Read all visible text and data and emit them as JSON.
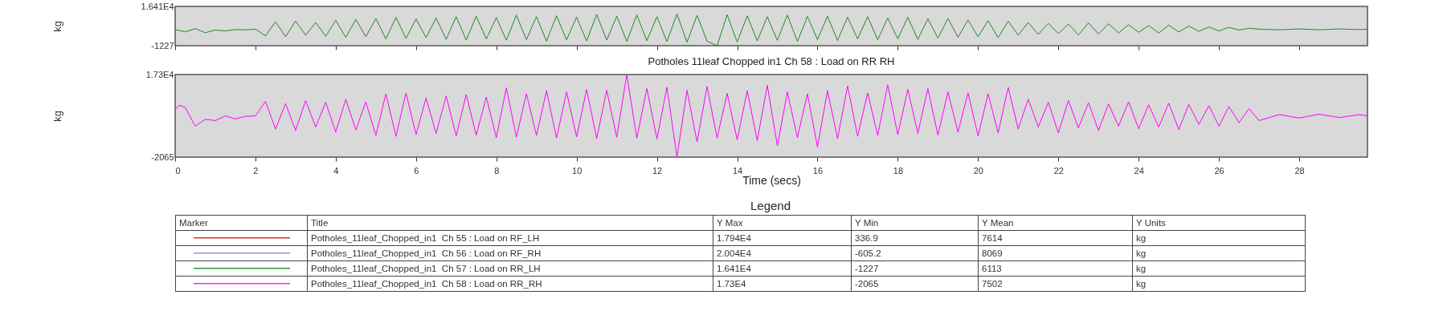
{
  "chart_data": [
    {
      "type": "line",
      "ylabel": "kg",
      "tick_labels": "y",
      "xlim": [
        0,
        29.7
      ],
      "xticks": [
        0,
        2,
        4,
        6,
        8,
        10,
        12,
        14,
        16,
        18,
        20,
        22,
        24,
        26,
        28
      ],
      "ylim": [
        -1227,
        16410
      ],
      "yticks": [
        -1227,
        {
          "value": 16410,
          "label": "1.641E4"
        }
      ],
      "x": [
        0,
        0.25,
        0.5,
        0.75,
        1,
        1.25,
        1.5,
        1.75,
        2,
        2.25,
        2.5,
        2.75,
        3,
        3.25,
        3.5,
        3.75,
        4,
        4.25,
        4.5,
        4.75,
        5,
        5.25,
        5.5,
        5.75,
        6,
        6.25,
        6.5,
        6.75,
        7,
        7.25,
        7.5,
        7.75,
        8,
        8.25,
        8.5,
        8.75,
        9,
        9.25,
        9.5,
        9.75,
        10,
        10.25,
        10.5,
        10.75,
        11,
        11.25,
        11.5,
        11.75,
        12,
        12.25,
        12.5,
        12.75,
        13,
        13.25,
        13.5,
        13.75,
        14,
        14.25,
        14.5,
        14.75,
        15,
        15.25,
        15.5,
        15.75,
        16,
        16.25,
        16.5,
        16.75,
        17,
        17.25,
        17.5,
        17.75,
        18,
        18.25,
        18.5,
        18.75,
        19,
        19.25,
        19.5,
        19.75,
        20,
        20.25,
        20.5,
        20.75,
        21,
        21.25,
        21.5,
        21.75,
        22,
        22.25,
        22.5,
        22.75,
        23,
        23.25,
        23.5,
        23.75,
        24,
        24.25,
        24.5,
        24.75,
        25,
        25.25,
        25.5,
        25.75,
        26,
        26.25,
        26.5,
        26.75,
        27,
        27.5,
        28,
        28.5,
        29,
        29.5,
        29.7
      ],
      "series": [
        {
          "color": "#1f8a1f",
          "values": [
            6000,
            5000,
            6400,
            4600,
            5800,
            5400,
            6000,
            5900,
            6200,
            3200,
            9500,
            2800,
            9800,
            3500,
            9200,
            3000,
            10200,
            2500,
            10500,
            2800,
            11000,
            1800,
            11500,
            2000,
            10800,
            2400,
            11200,
            1600,
            11800,
            1300,
            12000,
            1800,
            11400,
            1200,
            12500,
            1500,
            11800,
            800,
            12200,
            1400,
            11600,
            900,
            12800,
            1300,
            12000,
            700,
            12600,
            1000,
            11800,
            600,
            13000,
            300,
            12400,
            800,
            -1227,
            12700,
            400,
            12200,
            900,
            11800,
            1200,
            12500,
            700,
            11900,
            1500,
            12000,
            1100,
            11600,
            1800,
            11800,
            1400,
            11200,
            1900,
            11500,
            1600,
            10900,
            2200,
            11000,
            2500,
            10300,
            2800,
            10000,
            2400,
            9800,
            3500,
            9200,
            3800,
            8800,
            4200,
            8500,
            3600,
            9000,
            4000,
            8600,
            4500,
            8200,
            4800,
            7800,
            4500,
            8000,
            4900,
            7600,
            5200,
            7200,
            5400,
            7000,
            5800,
            6600,
            6200,
            5900,
            6300,
            5900,
            6300,
            6000,
            6200
          ]
        }
      ]
    },
    {
      "type": "line",
      "title": "Potholes 11leaf Chopped in1  Ch 58 : Load on RR RH",
      "xlabel": "Time (secs)",
      "ylabel": "kg",
      "xlim": [
        0,
        29.7
      ],
      "xticks": [
        0,
        2,
        4,
        6,
        8,
        10,
        12,
        14,
        16,
        18,
        20,
        22,
        24,
        26,
        28
      ],
      "ylim": [
        -2065,
        17300
      ],
      "yticks": [
        -2065,
        {
          "value": 17300,
          "label": "1.73E4"
        }
      ],
      "x": [
        0,
        0.1,
        0.25,
        0.5,
        0.75,
        1,
        1.25,
        1.5,
        1.75,
        2,
        2.25,
        2.5,
        2.75,
        3,
        3.25,
        3.5,
        3.75,
        4,
        4.25,
        4.5,
        4.75,
        5,
        5.25,
        5.5,
        5.75,
        6,
        6.25,
        6.5,
        6.75,
        7,
        7.25,
        7.5,
        7.75,
        8,
        8.25,
        8.5,
        8.75,
        9,
        9.25,
        9.5,
        9.75,
        10,
        10.25,
        10.5,
        10.75,
        11,
        11.25,
        11.5,
        11.75,
        12,
        12.25,
        12.5,
        12.75,
        13,
        13.25,
        13.5,
        13.75,
        14,
        14.25,
        14.5,
        14.75,
        15,
        15.25,
        15.5,
        15.75,
        16,
        16.25,
        16.5,
        16.75,
        17,
        17.25,
        17.5,
        17.75,
        18,
        18.25,
        18.5,
        18.75,
        19,
        19.25,
        19.5,
        19.75,
        20,
        20.25,
        20.5,
        20.75,
        21,
        21.25,
        21.5,
        21.75,
        22,
        22.25,
        22.5,
        22.75,
        23,
        23.25,
        23.5,
        23.75,
        24,
        24.25,
        24.5,
        24.75,
        25,
        25.25,
        25.5,
        25.75,
        26,
        26.25,
        26.5,
        26.75,
        27,
        27.5,
        28,
        28.5,
        29,
        29.5,
        29.7
      ],
      "series": [
        {
          "color": "#ff00ff",
          "values": [
            9000,
            10100,
            9600,
            5200,
            6800,
            6500,
            7600,
            6900,
            7500,
            7600,
            11000,
            4500,
            10500,
            4200,
            11200,
            5000,
            10800,
            3800,
            11500,
            4300,
            10900,
            3000,
            12800,
            2800,
            13000,
            3200,
            11800,
            3500,
            12300,
            2900,
            12600,
            3100,
            12000,
            2500,
            14200,
            2600,
            12800,
            3000,
            13500,
            2400,
            13200,
            2700,
            13800,
            2300,
            13600,
            2600,
            17300,
            2400,
            14000,
            2200,
            14300,
            -2065,
            13600,
            1500,
            14500,
            2400,
            12900,
            2000,
            13500,
            1800,
            14800,
            600,
            13200,
            2500,
            12800,
            300,
            13500,
            2300,
            14600,
            2800,
            13000,
            3000,
            14900,
            3200,
            13800,
            3500,
            14000,
            3100,
            13200,
            3800,
            13000,
            2900,
            12800,
            3600,
            14300,
            4500,
            11500,
            5000,
            10800,
            3600,
            11200,
            4800,
            10700,
            4200,
            10400,
            5200,
            10900,
            4600,
            10200,
            5000,
            10600,
            4400,
            10300,
            5600,
            10000,
            5200,
            9800,
            6000,
            9300,
            6500,
            7900,
            7100,
            8000,
            7200,
            7900,
            7600
          ]
        }
      ]
    },
    {
      "type": "other",
      "title": "Legend",
      "categories": [
        "Marker",
        "Title",
        "Y Max",
        "Y Min",
        "Y Mean",
        "Y Units"
      ],
      "colors": [
        "#e03030",
        "#8a9ad8",
        "#2a9a2a",
        "#ff22ff"
      ],
      "annotations": [
        "Potholes_11leaf_Chopped_in1  Ch 55 : Load on RF_LH",
        "1.794E4",
        "336.9",
        "7614",
        "kg",
        "Potholes_11leaf_Chopped_in1  Ch 56 : Load on RF_RH",
        "2.004E4",
        "-605.2",
        "8069",
        "kg",
        "Potholes_11leaf_Chopped_in1  Ch 57 : Load on RR_LH",
        "1.641E4",
        "-1227",
        "6113",
        "kg",
        "Potholes_11leaf_Chopped_in1  Ch 58 : Load on RR_RH",
        "1.73E4",
        "-2065",
        "7502",
        "kg"
      ]
    }
  ]
}
